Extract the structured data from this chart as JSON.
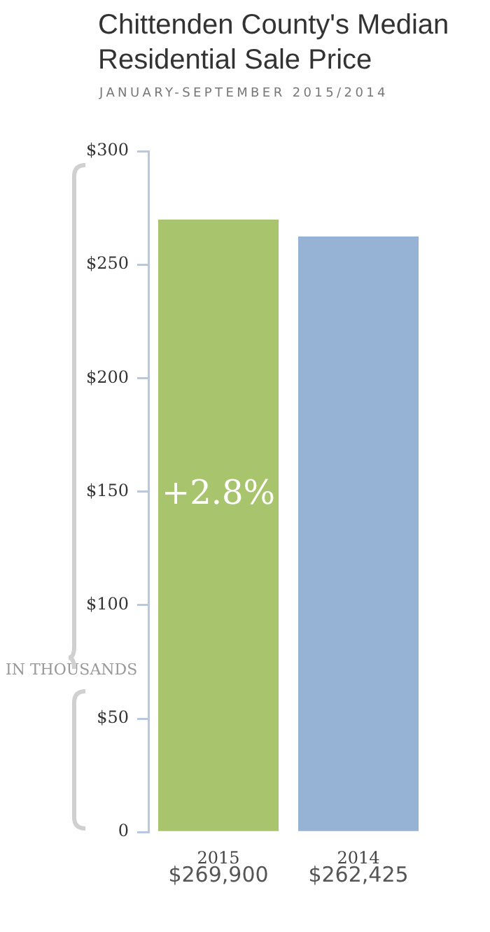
{
  "chart_data": {
    "type": "bar",
    "title": "Chittenden County's Median Residential Sale Price",
    "subtitle": "JANUARY-SEPTEMBER 2015/2014",
    "ylabel": "IN THOUSANDS",
    "categories": [
      "2015",
      "2014"
    ],
    "values": [
      269.9,
      262.425
    ],
    "colors": [
      "#a8c46c",
      "#96b3d6"
    ],
    "ylim": [
      0,
      300
    ],
    "yticks": [
      {
        "value": 0,
        "label": "0"
      },
      {
        "value": 50,
        "label": "$50"
      },
      {
        "value": 100,
        "label": "$100"
      },
      {
        "value": 150,
        "label": "$150"
      },
      {
        "value": 200,
        "label": "$200"
      },
      {
        "value": 250,
        "label": "$250"
      },
      {
        "value": 300,
        "label": "$300"
      }
    ],
    "annotations": [
      "+2.8%",
      "$269,900",
      "$262,425"
    ],
    "grid": false,
    "legend": false
  }
}
